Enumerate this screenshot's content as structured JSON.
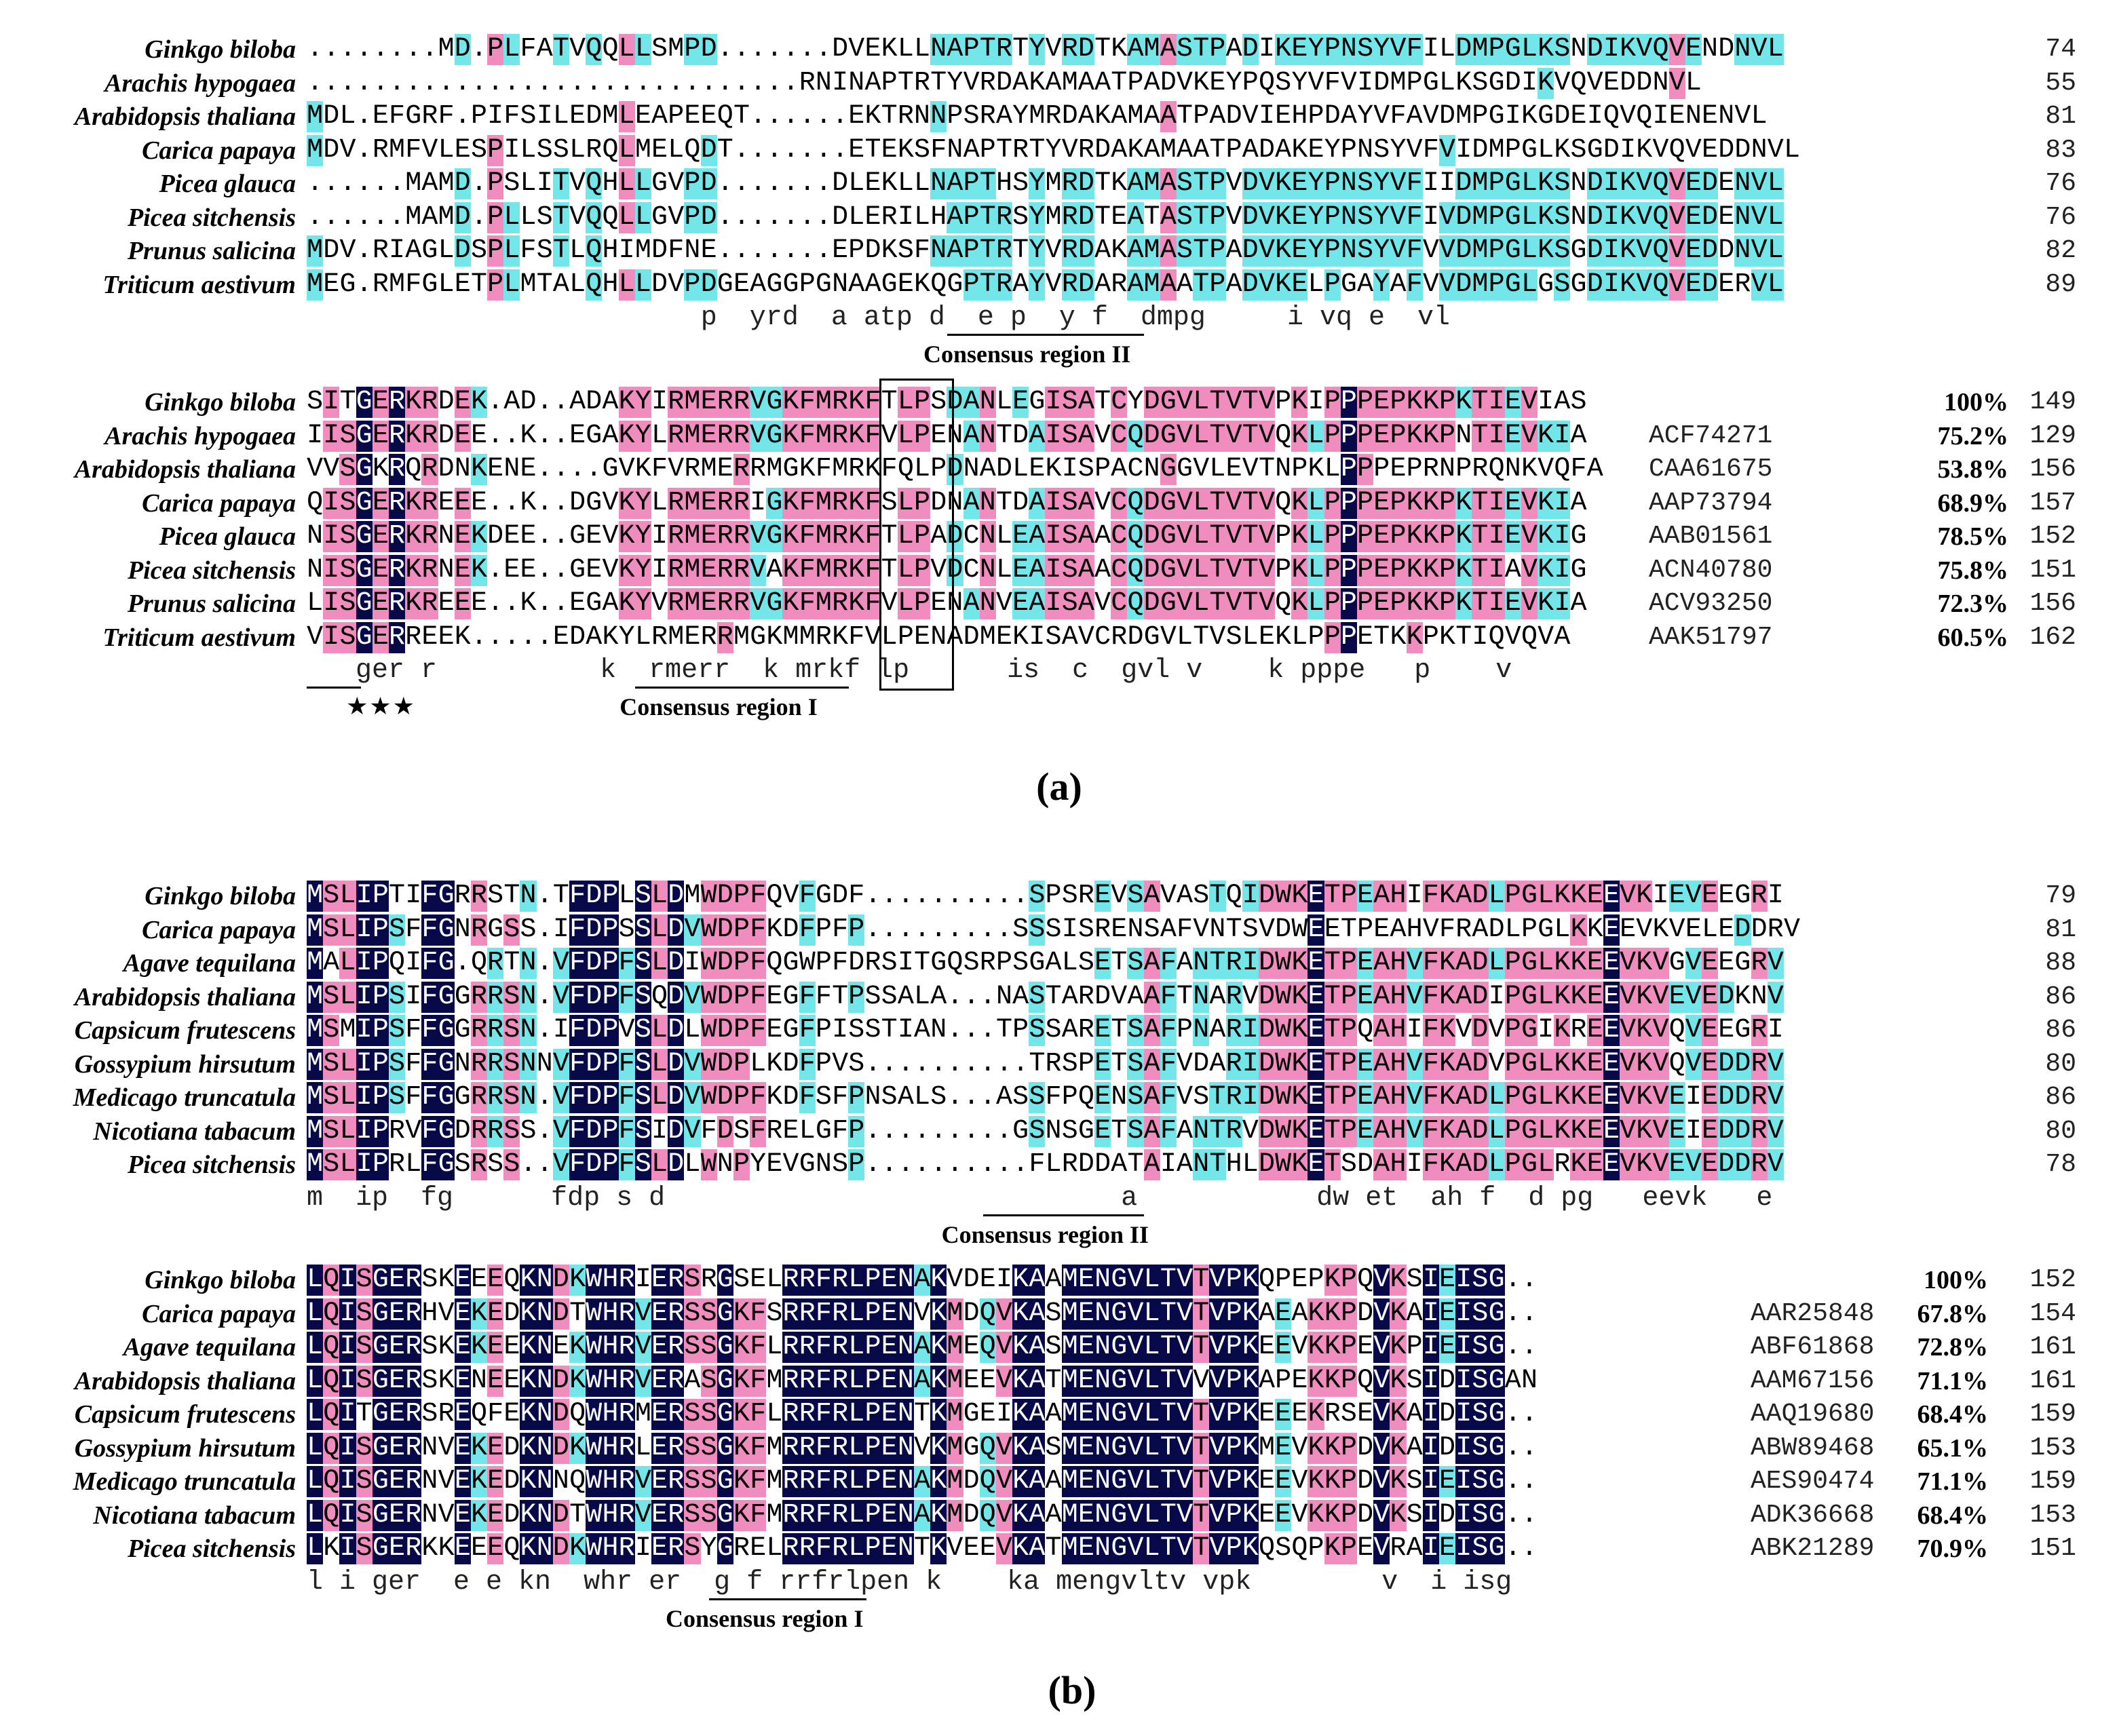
{
  "panel_a": {
    "label": "(a)",
    "block1": {
      "rows": [
        {
          "species": "Ginkgo biloba",
          "seq": "........MD.PLFATVQQLLSMPD.......DVEKLLNAPTRTYVRDTKAMASTPADIKEYPNSYVFILDMPGLKSNDIKVQVENDNVL",
          "end": "74"
        },
        {
          "species": "Arachis hypogaea",
          "seq": "..............................RNINAPTRTYVRDAKAMAATPADVKEYPQSYVFVIDMPGLKSGDIKVQVEDDNVL",
          "end": "55"
        },
        {
          "species": "Arabidopsis thaliana",
          "seq": "MDL.EFGRF.PIFSILEDMLEAPEEQT......EKTRNNPSRAYMRDAKAMAATPADVIEHPDAYVFAVDMPGIKGDEIQVQIENENVL",
          "end": "81"
        },
        {
          "species": "Carica papaya",
          "seq": "MDV.RMFVLESPILSSLRQLMELQDT.......ETEKSFNAPTRTYVRDAKAMAATPADAKEYPNSYVFVIDMPGLKSGDIKVQVEDDNVL",
          "end": "83"
        },
        {
          "species": "Picea glauca",
          "seq": "......MAMD.PSLITVQHLLGVPD.......DLEKLLNAPTHSYMRDTKAMASTPVDVKEYPNSYVFIIDMPGLKSNDIKVQVEDENVL",
          "end": "76"
        },
        {
          "species": "Picea sitchensis",
          "seq": "......MAMD.PLLSTVQQLLGVPD.......DLERILHAPTRSYMRDTEATASTPVDVKEYPNSYVFIVDMPGLKSNDIKVQVEDENVL",
          "end": "76"
        },
        {
          "species": "Prunus salicina",
          "seq": "MDV.RIAGLDSPLFSTLQHIMDFNE.......EPDKSFNAPTRTYVRDAKAMASTPADVKEYPNSYVFVVDMPGLKSGDIKVQVEDDNVL",
          "end": "82"
        },
        {
          "species": "Triticum aestivum",
          "seq": "MEG.RMFGLETPLMTALQHLLDVPDGEAGGPGNAAGEKQGPTRAYVRDARAMAATPADVKELPGAYAFVVDMPGLGSGDIKVQVEDERVL",
          "end": "89"
        }
      ],
      "consensus": "p  yrd  a atp d  e p  y f  dmpg     i vq e  vl",
      "region_label": "Consensus region II"
    },
    "block2": {
      "rows": [
        {
          "species": "Ginkgo biloba",
          "seq": "SITGERKRDEK.AD..ADAKYIRMERRVGKFMRKFTLPSDANLEGISATCYDGVLTVTVPKIPPPEPKKPKTIEVIAS",
          "acc": "",
          "pct": "100%",
          "end": "149"
        },
        {
          "species": "Arachis hypogaea",
          "seq": "IISGERKRDEE..K..EGAKYLRMERRVGKFMRKFVLPENANTDAISAVCQDGVLTVTVQKLPPPEPKKPNTIEVKIA",
          "acc": "ACF74271",
          "pct": "75.2%",
          "end": "129"
        },
        {
          "species": "Arabidopsis thaliana",
          "seq": "VVSGKRQRDNKENE....GVKFVRMERRMGKFMRKFQLPDNADLEKISPACNGGVLEVTNPKLPPPEPRNPRQNKVQFA",
          "acc": "CAA61675",
          "pct": "53.8%",
          "end": "156"
        },
        {
          "species": "Carica papaya",
          "seq": "QISGERKREEE..K..DGVKYLRMERRIGKFMRKFSLPDNANTDAISAVCQDGVLTVTVQKLPPPEPKKPKTIEVKIA",
          "acc": "AAP73794",
          "pct": "68.9%",
          "end": "157"
        },
        {
          "species": "Picea glauca",
          "seq": "NISGERKRNEKDEE..GEVKYIRMERRVGKFMRKFTLPADCNLEAISAACQDGVLTVTVPKLPPPEPKKPKTIEVKIG",
          "acc": "AAB01561",
          "pct": "78.5%",
          "end": "152"
        },
        {
          "species": "Picea sitchensis",
          "seq": "NISGERKRNEK.EE..GEVKYIRMERRVAKFMRKFTLPVDCNLEAISAACQDGVLTVTVPKLPPPEPKKPKTIAVKIG",
          "acc": "ACN40780",
          "pct": "75.8%",
          "end": "151"
        },
        {
          "species": "Prunus salicina",
          "seq": "LISGERKREEE..K..EGAKYVRMERRVGKFMRKFVLPENANVEAISAVCQDGVLTVTVQKLPPPEPKKPKTIEVKIA",
          "acc": "ACV93250",
          "pct": "72.3%",
          "end": "156"
        },
        {
          "species": "Triticum aestivum",
          "seq": "VISGERREEK.....EDAKYLRMERRMGKMMRKFVLPENADMEKISAVCRDGVLTVSLEKLPPPETKKPKTIQVQVA",
          "acc": "AAK51797",
          "pct": "60.5%",
          "end": "162"
        }
      ],
      "consensus": "   ger r          k  rmerr  k mrkf lp      is  c  gvl v    k pppe   p    v",
      "region_label": "Consensus region I",
      "stars": "★★★"
    }
  },
  "panel_b": {
    "label": "(b)",
    "block1": {
      "rows": [
        {
          "species": "Ginkgo biloba",
          "seq": "MSLIPTIFGRRSTN.TFDPLSLDMWDPFQVFGDF..........SPSREVSAVASTQIDWKETPEAHIFKADLPGLKKEEVKIEVEEGRI",
          "end": "79"
        },
        {
          "species": "Carica papaya",
          "seq": "MSLIPSFFGNRGSS.IFDPSSLDVWDPFKDFPFP.........SSSISRENSAFVNTSVDWEETPEAHVFRADLPGLKKEEVKVELEDDRV",
          "end": "81"
        },
        {
          "species": "Agave tequilana",
          "seq": "MALIPQIFG.QRTN.VFDPFSLDIWDPFQGWPFDRSITGQSRPSGALSETSAFANTRIDWKETPEAHVFKADLPGLKKEEVKVGVEEGRV",
          "end": "88"
        },
        {
          "species": "Arabidopsis thaliana",
          "seq": "MSLIPSIFGGRRSN.VFDPFSQDVWDPFEGFFTPSSALA...NASTARDVAAFTNARVDWKETPEAHVFKADIPGLKKEEVKVEVEDKNV",
          "end": "86"
        },
        {
          "species": "Capsicum frutescens",
          "seq": "MSMIPSFFGGRRSN.IFDPVSLDLWDPFEGFPISSTIAN...TPSSARETSAFPNARIDWKETPQAHIFKVDVPGIKREEVKVQVEEGRI",
          "end": "86"
        },
        {
          "species": "Gossypium hirsutum",
          "seq": "MSLIPSFFGNRRSNNVFDPFSLDVWDPLKDFPVS..........TRSPETSAFVDARIDWKETPEAHVFKADVPGLKKEEVKVQVEDDRV",
          "end": "80"
        },
        {
          "species": "Medicago truncatula",
          "seq": "MSLIPSFFGGRRSN.VFDPFSLDVWDPFKDFSFPNSALS...ASSFPQENSAFVSTRIDWKETPEAHVFKADLPGLKKEEVKVEIEDDRV",
          "end": "86"
        },
        {
          "species": "Nicotiana tabacum",
          "seq": "MSLIPRVFGDRRSS.VFDPFSIDVFDSFRELGFP.........GSNSGETSAFANTRVDWKETPEAHVFKADLPGLKKEEVKVEIEDDRV",
          "end": "80"
        },
        {
          "species": "Picea sitchensis",
          "seq": "MSLIPRLFGSRSS..VFDPFSLDLWNPYEVGNSP..........FLRDDATAIANTHLDWKETSDAHIFKADLPGLRKEEVKVEVEDDRV",
          "end": "78"
        }
      ],
      "consensus": "m  ip  fg      fdp s d                            a           dw et  ah f  d pg   eevk   e",
      "region_label": "Consensus region II"
    },
    "block2": {
      "rows": [
        {
          "species": "Ginkgo biloba",
          "seq": "LQISGERSKEEEQKNDKWHRIERSRGSELRRFRLPENAKVDEIKAAMENGVLTVTVPKQPEPKPQVKSIEISG..",
          "acc": "",
          "pct": "100%",
          "end": "152"
        },
        {
          "species": "Carica papaya",
          "seq": "LQISGERHVEKEDKNDTWHRVERSSGKFSRRFRLPENVKMDQVKASMENGVLTVTVPKAEAKKPDVKAIEISG..",
          "acc": "AAR25848",
          "pct": "67.8%",
          "end": "154"
        },
        {
          "species": "Agave tequilana",
          "seq": "LQISGERSKEKEEKNEKWHRVERSSGKFLRRFRLPENAKMEQVKASMENGVLTVTVPKEEVKKPEVKPIEISG..",
          "acc": "ABF61868",
          "pct": "72.8%",
          "end": "161"
        },
        {
          "species": "Arabidopsis thaliana",
          "seq": "LQISGERSKENEEKNDKWHRVERASGKFMRRFRLPENAKMEEVKATMENGVLTVVVPKAPEKKPQVKSIDISGAN",
          "acc": "AAM67156",
          "pct": "71.1%",
          "end": "161"
        },
        {
          "species": "Capsicum frutescens",
          "seq": "LQITGERSREQFEKNDQWHRMERSSGKFLRRFRLPENTKMGEIKAAMENGVLTVTVPKEEEKRSEVKAIDISG..",
          "acc": "AAQ19680",
          "pct": "68.4%",
          "end": "159"
        },
        {
          "species": "Gossypium hirsutum",
          "seq": "LQISGERNVEKEDKNDKWHRLERSSGKFMRRFRLPENVKMGQVKASMENGVLTVTVPKMEVKKPDVKAIDISG..",
          "acc": "ABW89468",
          "pct": "65.1%",
          "end": "153"
        },
        {
          "species": "Medicago truncatula",
          "seq": "LQISGERNVEKEDKNNQWHRVERSSGKFMRRFRLPENAKMDQVKAAMENGVLTVTVPKEEVKKPDVKSIEISG..",
          "acc": "AES90474",
          "pct": "71.1%",
          "end": "159"
        },
        {
          "species": "Nicotiana tabacum",
          "seq": "LQISGERNVEKEDKNDTWHRVERSSGKFMRRFRLPENAKMDQVKAAMENGVLTVTVPKEEVKKPDVKSIDISG..",
          "acc": "ADK36668",
          "pct": "68.4%",
          "end": "153"
        },
        {
          "species": "Picea sitchensis",
          "seq": "LKISGERKKEEEQKNDKWHRIERSYGRELRRFRLPENTKVEEVKATMENGVLTVTVPKQSQPKPEVRAIEISG..",
          "acc": "ABK21289",
          "pct": "70.9%",
          "end": "151"
        }
      ],
      "consensus": "l i ger  e e kn  whr er  g f rrfrlpen k    ka mengvltv vpk        v  i isg",
      "region_label": "Consensus region I"
    }
  }
}
